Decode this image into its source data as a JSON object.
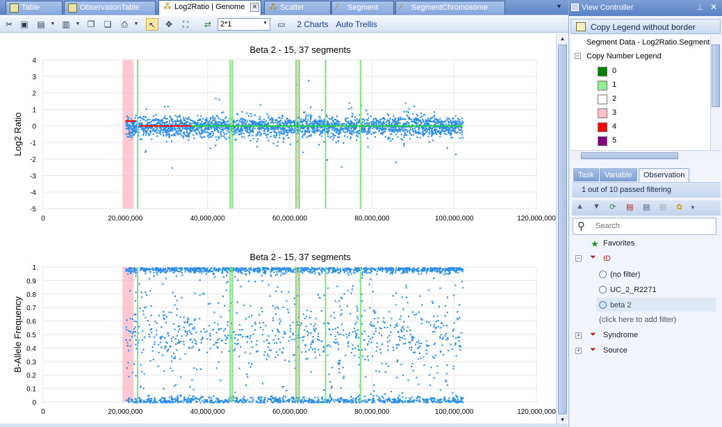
{
  "tabs": [
    {
      "label": "Table"
    },
    {
      "label": "ObservationTable"
    },
    {
      "label": "Log2Ratio | Genome",
      "active": true
    },
    {
      "label": "Scatter"
    },
    {
      "label": "Segment"
    },
    {
      "label": "SegmentChromosome"
    }
  ],
  "toolbar": {
    "zoom_value": "2*1",
    "charts_label": "2 Charts",
    "trellis_label": "Auto Trellis"
  },
  "charts": [
    {
      "title": "Beta 2 - 15, 37 segments",
      "ylabel": "Log2 Ratio",
      "yticks": [
        "4",
        "3",
        "2",
        "1",
        "0",
        "-1",
        "-2",
        "-3",
        "-4",
        "-5"
      ],
      "xticks": [
        "0",
        "20,000,000",
        "40,000,000",
        "60,000,000",
        "80,000,000",
        "100,000,000",
        "120,000,000"
      ]
    },
    {
      "title": "Beta 2 - 15, 37 segments",
      "ylabel": "B-Allele Frequency",
      "yticks": [
        "1",
        "0.9",
        "0.8",
        "0.7",
        "0.6",
        "0.5",
        "0.4",
        "0.3",
        "0.2",
        "0.1",
        "0"
      ],
      "xticks": [
        "0",
        "20,000,000",
        "40,000,000",
        "60,000,000",
        "80,000,000",
        "100,000,000",
        "120,000,000"
      ]
    }
  ],
  "chart_data": [
    {
      "type": "scatter",
      "title": "Beta 2 - 15, 37 segments",
      "ylabel": "Log2 Ratio",
      "xlim": [
        0,
        120000000
      ],
      "ylim": [
        -5,
        4
      ],
      "point_color": "#2e8fe8",
      "point_x_range": [
        20000000,
        102000000
      ],
      "segments": [
        {
          "x": [
            20000000,
            22500000
          ],
          "y": 0.3,
          "copy_number": 4
        },
        {
          "x": [
            23500000,
            36000000
          ],
          "y": 0.0,
          "copy_number": 4
        },
        {
          "x": [
            36000000,
            102000000
          ],
          "y": 0.0,
          "copy_number": 1
        }
      ],
      "highlight_regions": [
        {
          "x": [
            19300000,
            22000000
          ],
          "copy_number": 3
        },
        {
          "x": [
            61500000,
            62500000
          ],
          "copy_number": 3
        }
      ],
      "boundaries": [
        23000000,
        45500000,
        46000000,
        61500000,
        62300000,
        68700000,
        77200000
      ]
    },
    {
      "type": "scatter",
      "title": "Beta 2 - 15, 37 segments",
      "ylabel": "B-Allele Frequency",
      "xlim": [
        0,
        120000000
      ],
      "ylim": [
        0,
        1
      ],
      "point_color": "#2e8fe8",
      "point_x_range": [
        20000000,
        102000000
      ],
      "highlight_regions": [
        {
          "x": [
            19300000,
            22000000
          ],
          "copy_number": 3
        },
        {
          "x": [
            61500000,
            62500000
          ],
          "copy_number": 3
        }
      ],
      "boundaries": [
        23000000,
        45500000,
        46000000,
        61500000,
        62300000,
        68700000,
        77200000
      ]
    }
  ],
  "view_controller": {
    "title": "View Controller",
    "copy_legend": "Copy Legend  without border",
    "segment_label": "Segment Data - Log2Ratio.Segment",
    "legend_title": "Copy Number Legend",
    "legend_items": [
      {
        "label": "0",
        "color": "#008000"
      },
      {
        "label": "1",
        "color": "#90ee90"
      },
      {
        "label": "2",
        "color": "#ffffff"
      },
      {
        "label": "3",
        "color": "#ffc0cb"
      },
      {
        "label": "4",
        "color": "#ff0000"
      },
      {
        "label": "5",
        "color": "#800080"
      }
    ],
    "panel_tabs": [
      "Task",
      "Variable",
      "Observation"
    ],
    "filter_status": "1 out of 10 passed filtering",
    "search_placeholder": "Search",
    "favorites": "Favorites",
    "id_label": "ID",
    "filters": [
      "(no filter)",
      "UC_2_R2271",
      "beta 2"
    ],
    "add_filter": "(click here to add filter)",
    "syndrome": "Syndrome",
    "source": "Source"
  }
}
